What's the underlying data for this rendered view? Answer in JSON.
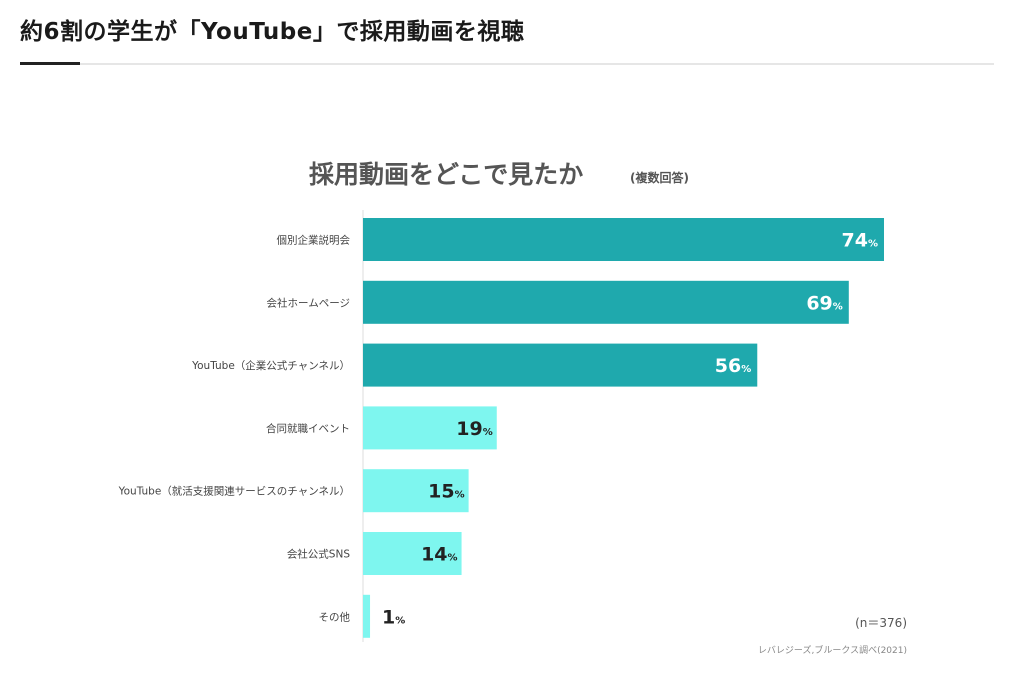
{
  "article": {
    "heading": "約6割の学生が「YouTube」で採用動画を視聴"
  },
  "chart_data": {
    "type": "bar",
    "orientation": "horizontal",
    "title": "採用動画をどこで見たか",
    "subtitle": "(複数回答)",
    "unit": "%",
    "categories": [
      "個別企業説明会",
      "会社ホームページ",
      "YouTube（企業公式チャンネル）",
      "合同就職イベント",
      "YouTube（就活支援関連サービスのチャンネル）",
      "会社公式SNS",
      "その他"
    ],
    "values": [
      74,
      69,
      56,
      19,
      15,
      14,
      1
    ],
    "bar_colors": [
      "#1fa9ad",
      "#1fa9ad",
      "#1fa9ad",
      "#7ef6ef",
      "#7ef6ef",
      "#7ef6ef",
      "#7ef6ef"
    ],
    "label_colors": [
      "#ffffff",
      "#ffffff",
      "#ffffff",
      "#222222",
      "#222222",
      "#222222",
      "#222222"
    ],
    "sample_note": "(n＝376)",
    "source": "レバレジーズ,ブルークス調べ(2021)",
    "xlim": [
      0,
      100
    ],
    "grid": false
  }
}
